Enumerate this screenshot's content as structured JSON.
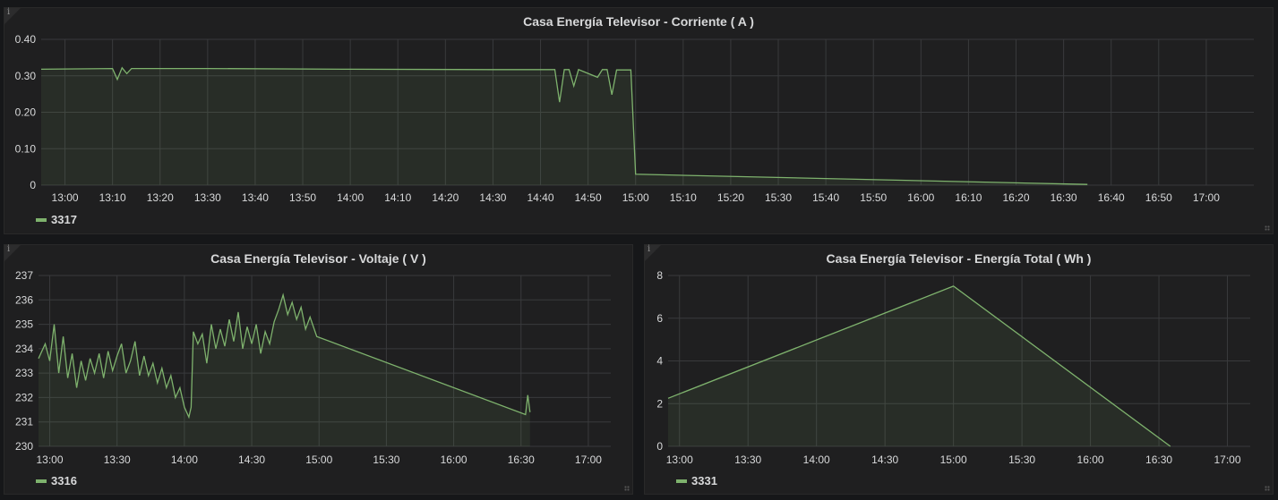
{
  "chart_data": [
    {
      "type": "area",
      "title": "Casa Energía Televisor - Corriente ( A )",
      "legend": "3317",
      "color": "#7eb26d",
      "xlim": [
        "12:55",
        "17:10"
      ],
      "ylim": [
        0,
        0.4
      ],
      "yticks": [
        "0",
        "0.10",
        "0.20",
        "0.30",
        "0.40"
      ],
      "ytick_values": [
        0,
        0.1,
        0.2,
        0.3,
        0.4
      ],
      "xticks": [
        "13:00",
        "13:10",
        "13:20",
        "13:30",
        "13:40",
        "13:50",
        "14:00",
        "14:10",
        "14:20",
        "14:30",
        "14:40",
        "14:50",
        "15:00",
        "15:10",
        "15:20",
        "15:30",
        "15:40",
        "15:50",
        "16:00",
        "16:10",
        "16:20",
        "16:30",
        "16:40",
        "16:50",
        "17:00"
      ],
      "points": [
        [
          "12:55",
          0.318
        ],
        [
          "13:10",
          0.32
        ],
        [
          "13:11",
          0.29
        ],
        [
          "13:12",
          0.322
        ],
        [
          "13:13",
          0.306
        ],
        [
          "13:14",
          0.32
        ],
        [
          "13:30",
          0.32
        ],
        [
          "14:00",
          0.318
        ],
        [
          "14:30",
          0.317
        ],
        [
          "14:43",
          0.317
        ],
        [
          "14:44",
          0.228
        ],
        [
          "14:45",
          0.317
        ],
        [
          "14:46",
          0.317
        ],
        [
          "14:47",
          0.272
        ],
        [
          "14:48",
          0.317
        ],
        [
          "14:52",
          0.296
        ],
        [
          "14:53",
          0.317
        ],
        [
          "14:54",
          0.317
        ],
        [
          "14:55",
          0.248
        ],
        [
          "14:56",
          0.316
        ],
        [
          "14:59",
          0.316
        ],
        [
          "15:00",
          0.03
        ],
        [
          "16:35",
          0.002
        ]
      ]
    },
    {
      "type": "area",
      "title": "Casa Energía Televisor - Voltaje ( V )",
      "legend": "3316",
      "color": "#7eb26d",
      "xlim": [
        "12:55",
        "17:10"
      ],
      "ylim": [
        230,
        237
      ],
      "yticks": [
        "230",
        "231",
        "232",
        "233",
        "234",
        "235",
        "236",
        "237"
      ],
      "ytick_values": [
        230,
        231,
        232,
        233,
        234,
        235,
        236,
        237
      ],
      "xticks": [
        "13:00",
        "13:30",
        "14:00",
        "14:30",
        "15:00",
        "15:30",
        "16:00",
        "16:30",
        "17:00"
      ],
      "points": [
        [
          "12:55",
          233.6
        ],
        [
          "12:58",
          234.2
        ],
        [
          "13:00",
          233.5
        ],
        [
          "13:02",
          235.0
        ],
        [
          "13:04",
          233.0
        ],
        [
          "13:06",
          234.5
        ],
        [
          "13:08",
          232.8
        ],
        [
          "13:10",
          233.8
        ],
        [
          "13:12",
          232.4
        ],
        [
          "13:14",
          233.5
        ],
        [
          "13:16",
          232.7
        ],
        [
          "13:18",
          233.6
        ],
        [
          "13:20",
          233.0
        ],
        [
          "13:22",
          233.8
        ],
        [
          "13:24",
          232.8
        ],
        [
          "13:26",
          233.9
        ],
        [
          "13:28",
          233.1
        ],
        [
          "13:30",
          233.7
        ],
        [
          "13:32",
          234.2
        ],
        [
          "13:34",
          233.0
        ],
        [
          "13:36",
          233.5
        ],
        [
          "13:38",
          234.3
        ],
        [
          "13:40",
          232.9
        ],
        [
          "13:42",
          233.7
        ],
        [
          "13:44",
          232.9
        ],
        [
          "13:46",
          233.4
        ],
        [
          "13:48",
          232.6
        ],
        [
          "13:50",
          233.2
        ],
        [
          "13:52",
          232.4
        ],
        [
          "13:54",
          232.9
        ],
        [
          "13:56",
          232.0
        ],
        [
          "13:58",
          232.4
        ],
        [
          "14:00",
          231.6
        ],
        [
          "14:02",
          231.2
        ],
        [
          "14:03",
          231.6
        ],
        [
          "14:04",
          234.7
        ],
        [
          "14:06",
          234.2
        ],
        [
          "14:08",
          234.6
        ],
        [
          "14:10",
          233.4
        ],
        [
          "14:12",
          235.0
        ],
        [
          "14:14",
          234.0
        ],
        [
          "14:16",
          234.8
        ],
        [
          "14:18",
          234.1
        ],
        [
          "14:20",
          235.2
        ],
        [
          "14:22",
          234.3
        ],
        [
          "14:24",
          235.5
        ],
        [
          "14:26",
          234.0
        ],
        [
          "14:28",
          234.9
        ],
        [
          "14:30",
          234.2
        ],
        [
          "14:32",
          235.0
        ],
        [
          "14:34",
          233.8
        ],
        [
          "14:36",
          234.7
        ],
        [
          "14:38",
          234.2
        ],
        [
          "14:40",
          235.1
        ],
        [
          "14:42",
          235.6
        ],
        [
          "14:44",
          236.2
        ],
        [
          "14:46",
          235.4
        ],
        [
          "14:48",
          235.9
        ],
        [
          "14:50",
          235.2
        ],
        [
          "14:52",
          235.7
        ],
        [
          "14:54",
          234.8
        ],
        [
          "14:56",
          235.3
        ],
        [
          "14:59",
          234.5
        ],
        [
          "16:32",
          231.3
        ],
        [
          "16:33",
          232.1
        ],
        [
          "16:34",
          231.4
        ]
      ]
    },
    {
      "type": "area",
      "title": "Casa Energía Televisor - Energía Total ( Wh )",
      "legend": "3331",
      "color": "#7eb26d",
      "xlim": [
        "12:55",
        "17:10"
      ],
      "ylim": [
        0,
        8
      ],
      "yticks": [
        "0",
        "2",
        "4",
        "6",
        "8"
      ],
      "ytick_values": [
        0,
        2,
        4,
        6,
        8
      ],
      "xticks": [
        "13:00",
        "13:30",
        "14:00",
        "14:30",
        "15:00",
        "15:30",
        "16:00",
        "16:30",
        "17:00"
      ],
      "points": [
        [
          "12:55",
          2.25
        ],
        [
          "15:00",
          7.5
        ],
        [
          "16:35",
          0.0
        ]
      ]
    }
  ]
}
